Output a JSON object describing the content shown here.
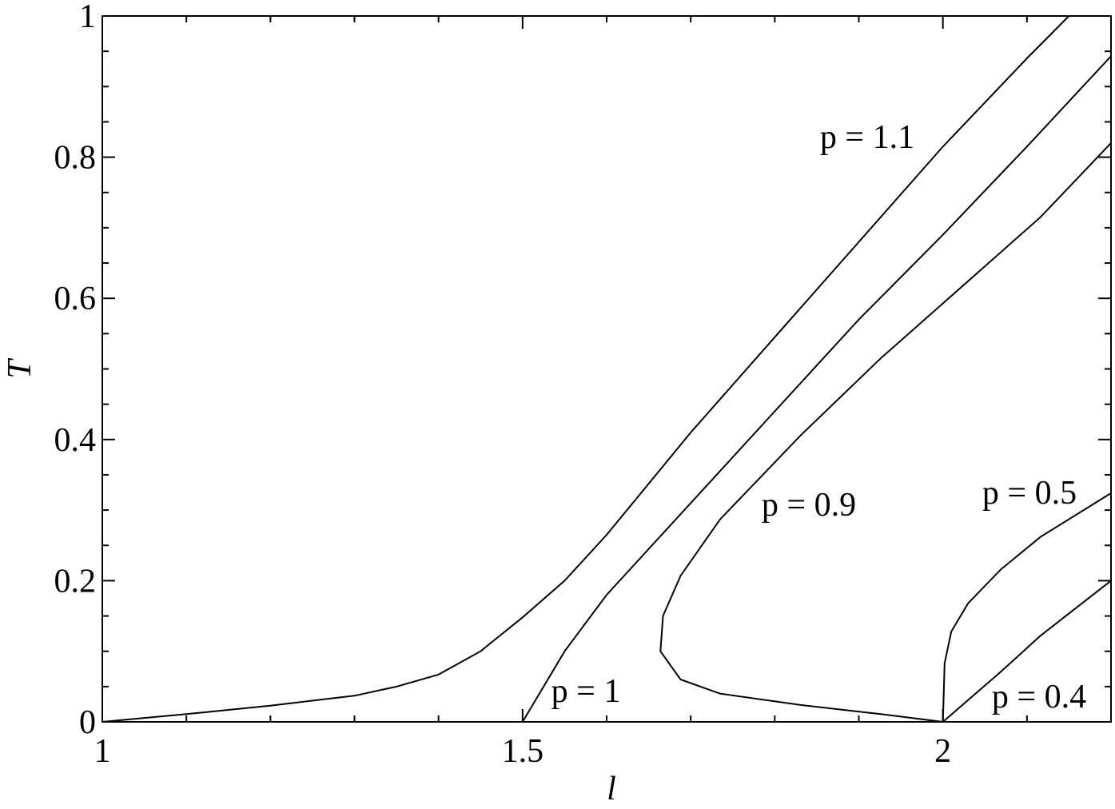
{
  "chart_data": {
    "type": "line",
    "xlabel": "l",
    "ylabel": "T",
    "xlim": [
      1,
      2.2
    ],
    "ylim": [
      0,
      1
    ],
    "xticks": [
      1,
      1.5,
      2
    ],
    "yticks": [
      0,
      0.2,
      0.4,
      0.6,
      0.8,
      1
    ],
    "xminorticks": [
      1.1,
      1.2,
      1.3,
      1.4,
      1.6,
      1.7,
      1.8,
      1.9,
      2.1
    ],
    "yminorticks": [
      0.05,
      0.1,
      0.15,
      0.25,
      0.3,
      0.35,
      0.45,
      0.5,
      0.55,
      0.65,
      0.7,
      0.75,
      0.85,
      0.9,
      0.95
    ],
    "series": [
      {
        "name": "p = 1.1",
        "color": "#000000",
        "x": [
          1,
          1.1,
          1.2,
          1.3,
          1.35,
          1.4,
          1.45,
          1.5,
          1.55,
          1.6,
          1.7,
          1.8,
          1.9,
          2.0,
          2.1,
          2.15
        ],
        "values": [
          0,
          0.011,
          0.023,
          0.037,
          0.05,
          0.067,
          0.1,
          0.148,
          0.2,
          0.265,
          0.41,
          0.545,
          0.68,
          0.815,
          0.94,
          1.0
        ]
      },
      {
        "name": "p = 1",
        "color": "#000000",
        "x": [
          1.5,
          1.55,
          1.6,
          1.7,
          1.8,
          1.9,
          2.0,
          2.1,
          2.2
        ],
        "values": [
          0,
          0.1,
          0.18,
          0.31,
          0.44,
          0.57,
          0.69,
          0.815,
          0.943
        ]
      },
      {
        "name": "p = 0.9",
        "color": "#000000",
        "x": [
          2,
          1.926,
          1.83,
          1.735,
          1.688,
          1.664,
          1.667,
          1.688,
          1.735,
          1.83,
          1.926,
          2.021,
          2.116,
          2.2
        ],
        "values": [
          0,
          0.011,
          0.024,
          0.04,
          0.06,
          0.1,
          0.15,
          0.207,
          0.287,
          0.405,
          0.515,
          0.615,
          0.715,
          0.82
        ]
      },
      {
        "name": "p = 0.5",
        "color": "#000000",
        "x": [
          2,
          2.002,
          2.01,
          2.03,
          2.069,
          2.116,
          2.2
        ],
        "values": [
          0,
          0.083,
          0.128,
          0.168,
          0.216,
          0.262,
          0.324
        ]
      },
      {
        "name": "p = 0.4",
        "color": "#000000",
        "x": [
          2,
          2.069,
          2.116,
          2.2
        ],
        "values": [
          0,
          0.071,
          0.122,
          0.2
        ]
      }
    ]
  }
}
